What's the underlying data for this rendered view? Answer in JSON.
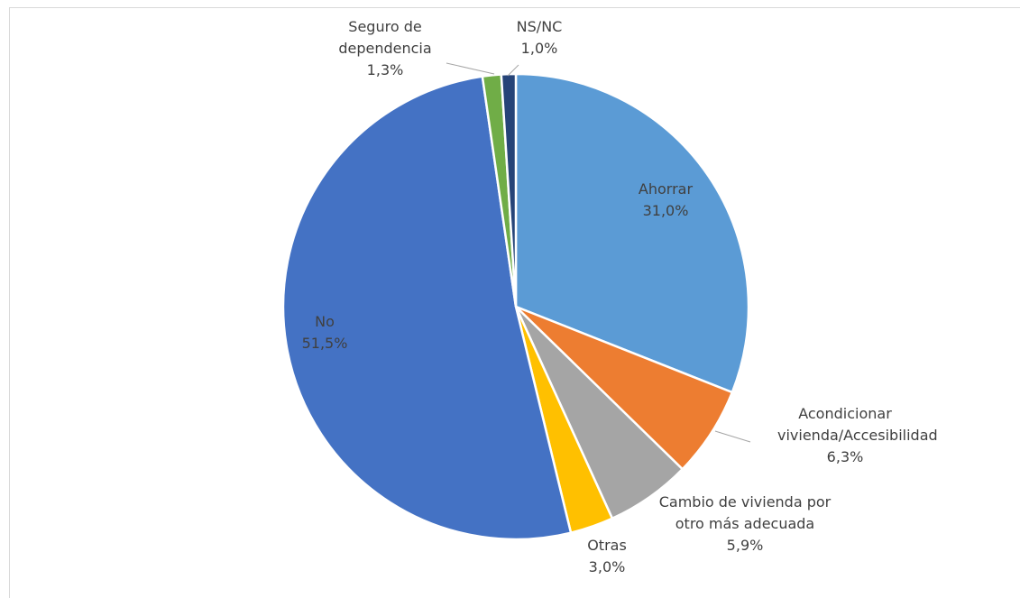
{
  "chart_data": {
    "type": "pie",
    "categories": [
      "Ahorrar",
      "Acondicionar vivienda/Accesibilidad",
      "Cambio de vivienda por otro más adecuada",
      "Otras",
      "No",
      "Seguro de dependencia",
      "NS/NC"
    ],
    "values": [
      31.0,
      6.3,
      5.9,
      3.0,
      51.5,
      1.3,
      1.0
    ],
    "value_labels": [
      "31,0%",
      "6,3%",
      "5,9%",
      "3,0%",
      "51,5%",
      "1,3%",
      "1,0%"
    ],
    "colors": [
      "#5b9bd5",
      "#ed7d31",
      "#a5a5a5",
      "#ffc000",
      "#4472c4",
      "#70ad47",
      "#264478"
    ]
  }
}
